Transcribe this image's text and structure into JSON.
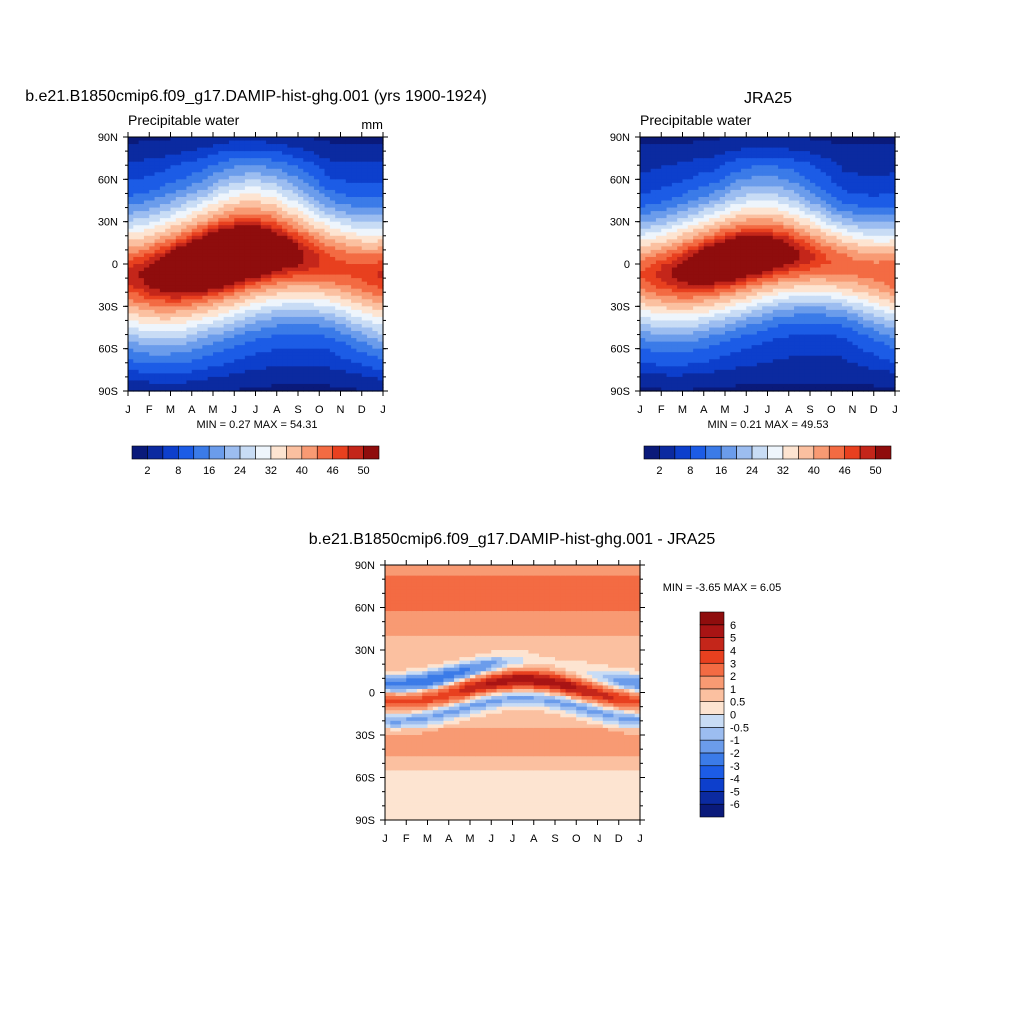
{
  "chart_data": [
    {
      "type": "heatmap",
      "title": "b.e21.B1850cmip6.f09_g17.DAMIP-hist-ghg.001 (yrs 1900-1924)",
      "left_label": "Precipitable water",
      "right_label": "mm",
      "stats": "MIN =   0.27 MAX =  54.31",
      "x": [
        "J",
        "F",
        "M",
        "A",
        "M",
        "J",
        "J",
        "A",
        "S",
        "O",
        "N",
        "D",
        "J"
      ],
      "y_ticks": [
        "90N",
        "60N",
        "30N",
        "0",
        "30S",
        "60S",
        "90S"
      ],
      "y_range": [
        -90,
        90
      ],
      "field": {
        "eq_lat_amp": 8,
        "peak_amp_scale": 1.06,
        "width_base": 15,
        "width_boost": 2
      },
      "colorbar": {
        "orientation": "horizontal",
        "levels": [
          2,
          5,
          8,
          12,
          16,
          20,
          24,
          28,
          32,
          36,
          40,
          43,
          46,
          48,
          50
        ],
        "labels": [
          "2",
          "8",
          "16",
          "24",
          "32",
          "40",
          "46",
          "50"
        ],
        "colors": [
          "#0a1a7a",
          "#0b2aa0",
          "#0d3fcc",
          "#1c5ce6",
          "#3b7be8",
          "#6b9ceb",
          "#9cbdf0",
          "#c8dcf5",
          "#eef5fc",
          "#fde4d1",
          "#fbc0a0",
          "#f89a73",
          "#f36b43",
          "#e8401f",
          "#c4261a",
          "#8f0d0d"
        ]
      }
    },
    {
      "type": "heatmap",
      "title": "JRA25",
      "left_label": "Precipitable water",
      "right_label": "",
      "stats": "MIN =   0.21 MAX =  49.53",
      "x": [
        "J",
        "F",
        "M",
        "A",
        "M",
        "J",
        "J",
        "A",
        "S",
        "O",
        "N",
        "D",
        "J"
      ],
      "y_ticks": [
        "90N",
        "60N",
        "30N",
        "0",
        "30S",
        "60S",
        "90S"
      ],
      "y_range": [
        -90,
        90
      ],
      "field": {
        "eq_lat_amp": 7,
        "peak_amp_scale": 1.0,
        "width_base": 14,
        "width_boost": 0
      }
    },
    {
      "type": "heatmap",
      "title": "b.e21.B1850cmip6.f09_g17.DAMIP-hist-ghg.001 - JRA25",
      "stats": "MIN =  -3.65 MAX =   6.05",
      "x": [
        "J",
        "F",
        "M",
        "A",
        "M",
        "J",
        "J",
        "A",
        "S",
        "O",
        "N",
        "D",
        "J"
      ],
      "y_ticks": [
        "90N",
        "60N",
        "30N",
        "0",
        "30S",
        "60S",
        "90S"
      ],
      "y_range": [
        -90,
        90
      ],
      "colorbar": {
        "orientation": "vertical",
        "levels": [
          -6,
          -5,
          -4,
          -3,
          -2,
          -1,
          -0.5,
          0,
          0.5,
          1,
          2,
          3,
          4,
          5,
          6
        ],
        "labels": [
          "-6",
          "-5",
          "-4",
          "-3",
          "-2",
          "-1",
          "-0.5",
          "0",
          "0.5",
          "1",
          "2",
          "3",
          "4",
          "5",
          "6"
        ],
        "colors": [
          "#0a1a7a",
          "#0b2aa0",
          "#0d3fcc",
          "#1c5ce6",
          "#3b7be8",
          "#6b9ceb",
          "#9cbdf0",
          "#c8dcf5",
          "#fde4d1",
          "#fbc0a0",
          "#f89a73",
          "#f36b43",
          "#e8401f",
          "#c4261a",
          "#a81414",
          "#8f0d0d"
        ]
      }
    }
  ]
}
